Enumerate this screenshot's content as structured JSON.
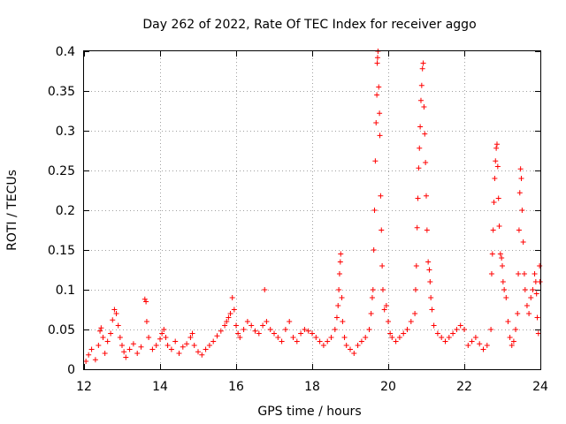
{
  "chart_data": {
    "type": "scatter",
    "title": "Day 262 of 2022, Rate Of TEC Index for receiver aggo",
    "xlabel": "GPS time / hours",
    "ylabel": "ROTI / TECUs",
    "xlim": [
      12,
      24
    ],
    "ylim": [
      0,
      0.4
    ],
    "x_ticks": [
      12,
      14,
      16,
      18,
      20,
      22,
      24
    ],
    "y_ticks": [
      0,
      0.05,
      0.1,
      0.15,
      0.2,
      0.25,
      0.3,
      0.35,
      0.4
    ],
    "x_tick_labels": [
      "12",
      "14",
      "16",
      "18",
      "20",
      "22",
      "24"
    ],
    "y_tick_labels": [
      "0",
      "0.05",
      "0.1",
      "0.15",
      "0.2",
      "0.25",
      "0.3",
      "0.35",
      "0.4"
    ],
    "grid": true,
    "marker": "plus",
    "color": "#ff0000",
    "series": [
      {
        "points": [
          [
            12.05,
            0.01
          ],
          [
            12.12,
            0.018
          ],
          [
            12.2,
            0.025
          ],
          [
            12.3,
            0.012
          ],
          [
            12.38,
            0.03
          ],
          [
            12.42,
            0.048
          ],
          [
            12.45,
            0.052
          ],
          [
            12.5,
            0.04
          ],
          [
            12.55,
            0.02
          ],
          [
            12.62,
            0.035
          ],
          [
            12.7,
            0.045
          ],
          [
            12.75,
            0.062
          ],
          [
            12.8,
            0.075
          ],
          [
            12.85,
            0.07
          ],
          [
            12.9,
            0.055
          ],
          [
            12.95,
            0.04
          ],
          [
            13.0,
            0.03
          ],
          [
            13.05,
            0.022
          ],
          [
            13.1,
            0.015
          ],
          [
            13.2,
            0.025
          ],
          [
            13.3,
            0.032
          ],
          [
            13.4,
            0.02
          ],
          [
            13.5,
            0.028
          ],
          [
            13.6,
            0.088
          ],
          [
            13.63,
            0.085
          ],
          [
            13.65,
            0.06
          ],
          [
            13.7,
            0.04
          ],
          [
            13.8,
            0.025
          ],
          [
            13.9,
            0.03
          ],
          [
            14.0,
            0.038
          ],
          [
            14.05,
            0.045
          ],
          [
            14.1,
            0.05
          ],
          [
            14.15,
            0.04
          ],
          [
            14.2,
            0.03
          ],
          [
            14.3,
            0.025
          ],
          [
            14.4,
            0.035
          ],
          [
            14.5,
            0.02
          ],
          [
            14.6,
            0.028
          ],
          [
            14.7,
            0.032
          ],
          [
            14.8,
            0.04
          ],
          [
            14.85,
            0.045
          ],
          [
            14.9,
            0.03
          ],
          [
            15.0,
            0.022
          ],
          [
            15.1,
            0.018
          ],
          [
            15.2,
            0.025
          ],
          [
            15.3,
            0.03
          ],
          [
            15.4,
            0.035
          ],
          [
            15.5,
            0.042
          ],
          [
            15.6,
            0.048
          ],
          [
            15.7,
            0.055
          ],
          [
            15.75,
            0.06
          ],
          [
            15.8,
            0.065
          ],
          [
            15.85,
            0.07
          ],
          [
            15.9,
            0.09
          ],
          [
            15.95,
            0.075
          ],
          [
            16.0,
            0.055
          ],
          [
            16.05,
            0.045
          ],
          [
            16.1,
            0.04
          ],
          [
            16.2,
            0.05
          ],
          [
            16.3,
            0.06
          ],
          [
            16.4,
            0.055
          ],
          [
            16.5,
            0.048
          ],
          [
            16.6,
            0.045
          ],
          [
            16.7,
            0.055
          ],
          [
            16.75,
            0.1
          ],
          [
            16.8,
            0.06
          ],
          [
            16.9,
            0.05
          ],
          [
            17.0,
            0.045
          ],
          [
            17.1,
            0.04
          ],
          [
            17.2,
            0.035
          ],
          [
            17.3,
            0.05
          ],
          [
            17.4,
            0.06
          ],
          [
            17.5,
            0.04
          ],
          [
            17.6,
            0.035
          ],
          [
            17.7,
            0.045
          ],
          [
            17.8,
            0.05
          ],
          [
            17.9,
            0.048
          ],
          [
            18.0,
            0.045
          ],
          [
            18.1,
            0.04
          ],
          [
            18.2,
            0.035
          ],
          [
            18.3,
            0.03
          ],
          [
            18.4,
            0.035
          ],
          [
            18.5,
            0.04
          ],
          [
            18.6,
            0.05
          ],
          [
            18.65,
            0.065
          ],
          [
            18.68,
            0.08
          ],
          [
            18.7,
            0.1
          ],
          [
            18.72,
            0.12
          ],
          [
            18.74,
            0.135
          ],
          [
            18.75,
            0.145
          ],
          [
            18.78,
            0.09
          ],
          [
            18.8,
            0.06
          ],
          [
            18.85,
            0.04
          ],
          [
            18.9,
            0.03
          ],
          [
            19.0,
            0.025
          ],
          [
            19.1,
            0.02
          ],
          [
            19.2,
            0.03
          ],
          [
            19.3,
            0.035
          ],
          [
            19.4,
            0.04
          ],
          [
            19.5,
            0.05
          ],
          [
            19.55,
            0.07
          ],
          [
            19.58,
            0.09
          ],
          [
            19.6,
            0.1
          ],
          [
            19.62,
            0.15
          ],
          [
            19.64,
            0.2
          ],
          [
            19.66,
            0.262
          ],
          [
            19.68,
            0.31
          ],
          [
            19.7,
            0.345
          ],
          [
            19.71,
            0.385
          ],
          [
            19.72,
            0.392
          ],
          [
            19.73,
            0.4
          ],
          [
            19.75,
            0.355
          ],
          [
            19.77,
            0.322
          ],
          [
            19.78,
            0.294
          ],
          [
            19.8,
            0.218
          ],
          [
            19.82,
            0.175
          ],
          [
            19.84,
            0.13
          ],
          [
            19.86,
            0.1
          ],
          [
            19.9,
            0.075
          ],
          [
            19.95,
            0.08
          ],
          [
            20.0,
            0.06
          ],
          [
            20.05,
            0.045
          ],
          [
            20.1,
            0.04
          ],
          [
            20.2,
            0.035
          ],
          [
            20.3,
            0.04
          ],
          [
            20.4,
            0.045
          ],
          [
            20.5,
            0.05
          ],
          [
            20.6,
            0.06
          ],
          [
            20.7,
            0.07
          ],
          [
            20.72,
            0.1
          ],
          [
            20.74,
            0.13
          ],
          [
            20.76,
            0.178
          ],
          [
            20.78,
            0.215
          ],
          [
            20.8,
            0.253
          ],
          [
            20.82,
            0.278
          ],
          [
            20.84,
            0.305
          ],
          [
            20.86,
            0.338
          ],
          [
            20.88,
            0.357
          ],
          [
            20.9,
            0.378
          ],
          [
            20.92,
            0.385
          ],
          [
            20.94,
            0.33
          ],
          [
            20.96,
            0.296
          ],
          [
            20.98,
            0.26
          ],
          [
            21.0,
            0.218
          ],
          [
            21.02,
            0.175
          ],
          [
            21.05,
            0.135
          ],
          [
            21.08,
            0.125
          ],
          [
            21.1,
            0.11
          ],
          [
            21.12,
            0.09
          ],
          [
            21.15,
            0.075
          ],
          [
            21.2,
            0.055
          ],
          [
            21.3,
            0.045
          ],
          [
            21.4,
            0.04
          ],
          [
            21.5,
            0.035
          ],
          [
            21.6,
            0.04
          ],
          [
            21.7,
            0.045
          ],
          [
            21.8,
            0.05
          ],
          [
            21.9,
            0.055
          ],
          [
            22.0,
            0.05
          ],
          [
            22.1,
            0.03
          ],
          [
            22.2,
            0.035
          ],
          [
            22.3,
            0.04
          ],
          [
            22.4,
            0.032
          ],
          [
            22.5,
            0.025
          ],
          [
            22.6,
            0.03
          ],
          [
            22.7,
            0.05
          ],
          [
            22.72,
            0.12
          ],
          [
            22.74,
            0.145
          ],
          [
            22.76,
            0.175
          ],
          [
            22.78,
            0.21
          ],
          [
            22.8,
            0.24
          ],
          [
            22.82,
            0.262
          ],
          [
            22.84,
            0.278
          ],
          [
            22.86,
            0.283
          ],
          [
            22.88,
            0.255
          ],
          [
            22.9,
            0.215
          ],
          [
            22.92,
            0.18
          ],
          [
            22.95,
            0.145
          ],
          [
            22.98,
            0.14
          ],
          [
            23.0,
            0.13
          ],
          [
            23.02,
            0.11
          ],
          [
            23.05,
            0.1
          ],
          [
            23.1,
            0.09
          ],
          [
            23.15,
            0.06
          ],
          [
            23.2,
            0.04
          ],
          [
            23.25,
            0.03
          ],
          [
            23.3,
            0.035
          ],
          [
            23.35,
            0.05
          ],
          [
            23.4,
            0.07
          ],
          [
            23.42,
            0.12
          ],
          [
            23.44,
            0.175
          ],
          [
            23.46,
            0.222
          ],
          [
            23.48,
            0.252
          ],
          [
            23.5,
            0.24
          ],
          [
            23.52,
            0.2
          ],
          [
            23.55,
            0.16
          ],
          [
            23.58,
            0.12
          ],
          [
            23.6,
            0.1
          ],
          [
            23.65,
            0.08
          ],
          [
            23.7,
            0.07
          ],
          [
            23.75,
            0.09
          ],
          [
            23.8,
            0.1
          ],
          [
            23.85,
            0.12
          ],
          [
            23.88,
            0.11
          ],
          [
            23.9,
            0.095
          ],
          [
            23.92,
            0.065
          ],
          [
            23.95,
            0.045
          ],
          [
            23.98,
            0.13
          ],
          [
            23.99,
            0.11
          ]
        ]
      }
    ]
  }
}
